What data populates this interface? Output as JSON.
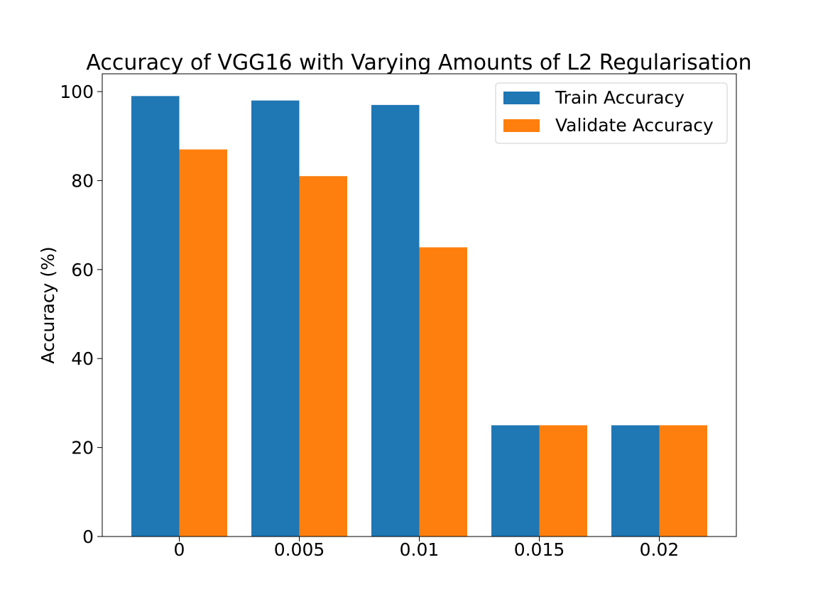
{
  "chart_data": {
    "type": "bar",
    "title": "Accuracy of VGG16 with Varying Amounts of L2 Regularisation",
    "xlabel": "",
    "ylabel": "Accuracy (%)",
    "categories": [
      "0",
      "0.005",
      "0.01",
      "0.015",
      "0.02"
    ],
    "series": [
      {
        "name": "Train Accuracy",
        "color": "#1f77b4",
        "values": [
          99,
          98,
          97,
          25,
          25
        ]
      },
      {
        "name": "Validate Accuracy",
        "color": "#ff7f0e",
        "values": [
          87,
          81,
          65,
          25,
          25
        ]
      }
    ],
    "ylim": [
      0,
      104
    ],
    "yticks": [
      0,
      20,
      40,
      60,
      80,
      100
    ],
    "grid": false,
    "legend_position": "top-right"
  }
}
